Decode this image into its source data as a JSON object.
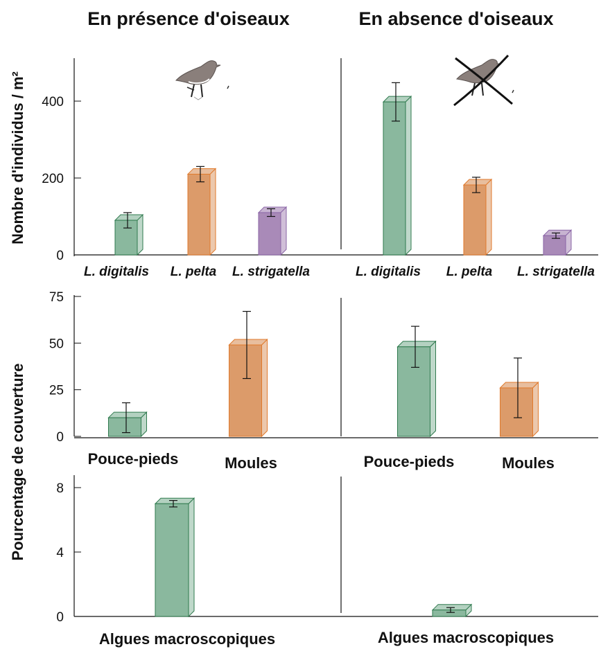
{
  "titles": {
    "left": "En présence d'oiseaux",
    "right": "En absence d'oiseaux"
  },
  "y_labels": {
    "top": "Nombre d'individus / m²",
    "bottom": "Pourcentage de couverture"
  },
  "icons": {
    "bird": "bird-icon",
    "crossed_bird": "crossed-bird-icon"
  },
  "colors": {
    "green": "#8ab89e",
    "green_stroke": "#2f7a4e",
    "orange": "#dc9b6a",
    "orange_stroke": "#e07a2c",
    "purple": "#a98ab8",
    "purple_stroke": "#8a64a6"
  },
  "chart_data": [
    {
      "type": "bar",
      "panel": "top",
      "categories": [
        "L. digitalis",
        "L. pelta",
        "L. strigatella"
      ],
      "series": [
        {
          "name": "En présence d'oiseaux",
          "values": [
            90,
            210,
            110
          ],
          "error": [
            20,
            20,
            10
          ]
        },
        {
          "name": "En absence d'oiseaux",
          "values": [
            398,
            182,
            50
          ],
          "error": [
            50,
            20,
            7
          ]
        }
      ],
      "ylabel": "Nombre d'individus / m²",
      "yticks": [
        0,
        200,
        400
      ],
      "ylim": [
        0,
        510
      ]
    },
    {
      "type": "bar",
      "panel": "middle",
      "categories": [
        "Pouce-pieds",
        "Moules"
      ],
      "series": [
        {
          "name": "En présence d'oiseaux",
          "values": [
            10,
            49
          ],
          "error": [
            8,
            18
          ]
        },
        {
          "name": "En absence d'oiseaux",
          "values": [
            48,
            26
          ],
          "error": [
            11,
            16
          ]
        }
      ],
      "ylabel": "Pourcentage de couverture",
      "yticks": [
        0,
        25,
        50,
        75
      ],
      "ylim": [
        0,
        75
      ]
    },
    {
      "type": "bar",
      "panel": "bottom",
      "categories": [
        "Algues macroscopiques"
      ],
      "series": [
        {
          "name": "En présence d'oiseaux",
          "values": [
            7.0
          ],
          "error": [
            0.2
          ]
        },
        {
          "name": "En absence d'oiseaux",
          "values": [
            0.4
          ],
          "error": [
            0.15
          ]
        }
      ],
      "ylabel": "Pourcentage de couverture",
      "yticks": [
        0,
        4,
        8
      ],
      "ylim": [
        0,
        9
      ]
    }
  ]
}
